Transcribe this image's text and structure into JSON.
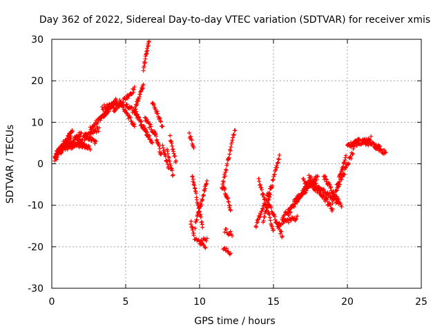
{
  "chart_data": {
    "type": "scatter",
    "title": "Day 362 of 2022, Sidereal Day-to-day VTEC variation (SDTVAR) for receiver xmis",
    "xlabel": "GPS time / hours",
    "ylabel": "SDTVAR / TECUs",
    "xlim": [
      0,
      25
    ],
    "ylim": [
      -30,
      30
    ],
    "xticks": [
      0,
      5,
      10,
      15,
      20,
      25
    ],
    "yticks": [
      -30,
      -20,
      -10,
      0,
      10,
      20,
      30
    ],
    "xtick_labels": [
      "0",
      "5",
      "10",
      "15",
      "20",
      "25"
    ],
    "ytick_labels": [
      "-30",
      "-20",
      "-10",
      "0",
      "10",
      "20",
      "30"
    ],
    "grid": true,
    "marker": "+",
    "color": "#ff0000",
    "series": [
      {
        "name": "SDTVAR",
        "tracks": [
          {
            "x0": 0.2,
            "x1": 1.3,
            "y0": 1.5,
            "y1": 6.5,
            "n": 40
          },
          {
            "x0": 0.3,
            "x1": 1.4,
            "y0": 2.5,
            "y1": 8.0,
            "n": 40
          },
          {
            "x0": 0.4,
            "x1": 1.6,
            "y0": 3.0,
            "y1": 4.5,
            "n": 30
          },
          {
            "x0": 0.2,
            "x1": 0.8,
            "y0": 1.0,
            "y1": 4.0,
            "n": 20
          },
          {
            "x0": 1.0,
            "x1": 2.0,
            "y0": 4.0,
            "y1": 7.5,
            "n": 30
          },
          {
            "x0": 1.3,
            "x1": 2.4,
            "y0": 5.0,
            "y1": 4.0,
            "n": 25
          },
          {
            "x0": 1.6,
            "x1": 2.6,
            "y0": 6.0,
            "y1": 3.5,
            "n": 25
          },
          {
            "x0": 1.9,
            "x1": 3.2,
            "y0": 5.5,
            "y1": 8.5,
            "n": 30
          },
          {
            "x0": 2.2,
            "x1": 3.0,
            "y0": 7.0,
            "y1": 5.0,
            "n": 20
          },
          {
            "x0": 2.6,
            "x1": 4.0,
            "y0": 8.5,
            "y1": 13.5,
            "n": 40
          },
          {
            "x0": 3.2,
            "x1": 4.4,
            "y0": 10.5,
            "y1": 15.5,
            "n": 35
          },
          {
            "x0": 3.4,
            "x1": 4.8,
            "y0": 13.5,
            "y1": 14.5,
            "n": 30
          },
          {
            "x0": 4.2,
            "x1": 5.6,
            "y0": 13.0,
            "y1": 18.0,
            "n": 35
          },
          {
            "x0": 4.6,
            "x1": 5.6,
            "y0": 15.0,
            "y1": 9.0,
            "n": 30
          },
          {
            "x0": 5.0,
            "x1": 5.8,
            "y0": 14.0,
            "y1": 12.0,
            "n": 20
          },
          {
            "x0": 5.6,
            "x1": 6.2,
            "y0": 13.0,
            "y1": 19.0,
            "n": 25
          },
          {
            "x0": 5.7,
            "x1": 6.5,
            "y0": 12.0,
            "y1": 7.0,
            "n": 25
          },
          {
            "x0": 6.0,
            "x1": 6.8,
            "y0": 10.0,
            "y1": 5.0,
            "n": 25
          },
          {
            "x0": 6.2,
            "x1": 6.6,
            "y0": 23.0,
            "y1": 30.0,
            "n": 20
          },
          {
            "x0": 6.3,
            "x1": 7.0,
            "y0": 11.0,
            "y1": 7.0,
            "n": 20
          },
          {
            "x0": 6.8,
            "x1": 7.5,
            "y0": 15.0,
            "y1": 9.0,
            "n": 20
          },
          {
            "x0": 7.0,
            "x1": 7.4,
            "y0": 7.0,
            "y1": 2.0,
            "n": 15
          },
          {
            "x0": 7.5,
            "x1": 7.9,
            "y0": 4.0,
            "y1": -1.0,
            "n": 15
          },
          {
            "x0": 7.8,
            "x1": 8.2,
            "y0": 3.0,
            "y1": -3.0,
            "n": 15
          },
          {
            "x0": 8.0,
            "x1": 8.4,
            "y0": 6.5,
            "y1": 0.5,
            "n": 15
          },
          {
            "x0": 9.3,
            "x1": 9.6,
            "y0": 7.0,
            "y1": 4.0,
            "n": 10
          },
          {
            "x0": 9.5,
            "x1": 10.2,
            "y0": -3.0,
            "y1": -15.0,
            "n": 30
          },
          {
            "x0": 9.7,
            "x1": 10.5,
            "y0": -15.0,
            "y1": -4.0,
            "n": 30
          },
          {
            "x0": 9.6,
            "x1": 10.4,
            "y0": -17.5,
            "y1": -20.0,
            "n": 15
          },
          {
            "x0": 10.0,
            "x1": 10.5,
            "y0": -19.0,
            "y1": -18.0,
            "n": 10
          },
          {
            "x0": 9.4,
            "x1": 9.6,
            "y0": -14.0,
            "y1": -16.5,
            "n": 8
          },
          {
            "x0": 11.5,
            "x1": 12.4,
            "y0": -6.0,
            "y1": 8.5,
            "n": 30
          },
          {
            "x0": 11.6,
            "x1": 12.1,
            "y0": -5.0,
            "y1": -11.0,
            "n": 20
          },
          {
            "x0": 11.7,
            "x1": 12.2,
            "y0": -16.0,
            "y1": -17.0,
            "n": 10
          },
          {
            "x0": 11.6,
            "x1": 12.1,
            "y0": -20.5,
            "y1": -21.5,
            "n": 10
          },
          {
            "x0": 13.8,
            "x1": 14.8,
            "y0": -15.0,
            "y1": -6.0,
            "n": 30
          },
          {
            "x0": 14.0,
            "x1": 15.0,
            "y0": -4.0,
            "y1": -16.0,
            "n": 30
          },
          {
            "x0": 14.3,
            "x1": 15.4,
            "y0": -14.0,
            "y1": 2.0,
            "n": 35
          },
          {
            "x0": 14.6,
            "x1": 15.6,
            "y0": -9.0,
            "y1": -17.5,
            "n": 30
          },
          {
            "x0": 15.2,
            "x1": 16.6,
            "y0": -14.5,
            "y1": -13.0,
            "n": 30
          },
          {
            "x0": 15.6,
            "x1": 17.3,
            "y0": -13.0,
            "y1": -6.0,
            "n": 45
          },
          {
            "x0": 16.0,
            "x1": 17.5,
            "y0": -12.0,
            "y1": -4.0,
            "n": 40
          },
          {
            "x0": 16.4,
            "x1": 18.0,
            "y0": -9.0,
            "y1": -3.0,
            "n": 40
          },
          {
            "x0": 17.0,
            "x1": 18.2,
            "y0": -4.0,
            "y1": -7.0,
            "n": 30
          },
          {
            "x0": 17.4,
            "x1": 19.0,
            "y0": -3.0,
            "y1": -11.0,
            "n": 45
          },
          {
            "x0": 17.8,
            "x1": 19.6,
            "y0": -5.0,
            "y1": -10.0,
            "n": 45
          },
          {
            "x0": 18.4,
            "x1": 19.4,
            "y0": -3.0,
            "y1": -9.0,
            "n": 30
          },
          {
            "x0": 19.0,
            "x1": 19.9,
            "y0": -9.0,
            "y1": 2.0,
            "n": 30
          },
          {
            "x0": 19.3,
            "x1": 20.4,
            "y0": -6.0,
            "y1": 3.0,
            "n": 30
          },
          {
            "x0": 20.0,
            "x1": 20.8,
            "y0": 4.0,
            "y1": 6.0,
            "n": 25
          },
          {
            "x0": 20.4,
            "x1": 21.6,
            "y0": 4.5,
            "y1": 6.0,
            "n": 30
          },
          {
            "x0": 21.0,
            "x1": 22.2,
            "y0": 5.5,
            "y1": 4.0,
            "n": 30
          },
          {
            "x0": 21.8,
            "x1": 22.6,
            "y0": 4.0,
            "y1": 2.5,
            "n": 20
          }
        ]
      }
    ]
  }
}
